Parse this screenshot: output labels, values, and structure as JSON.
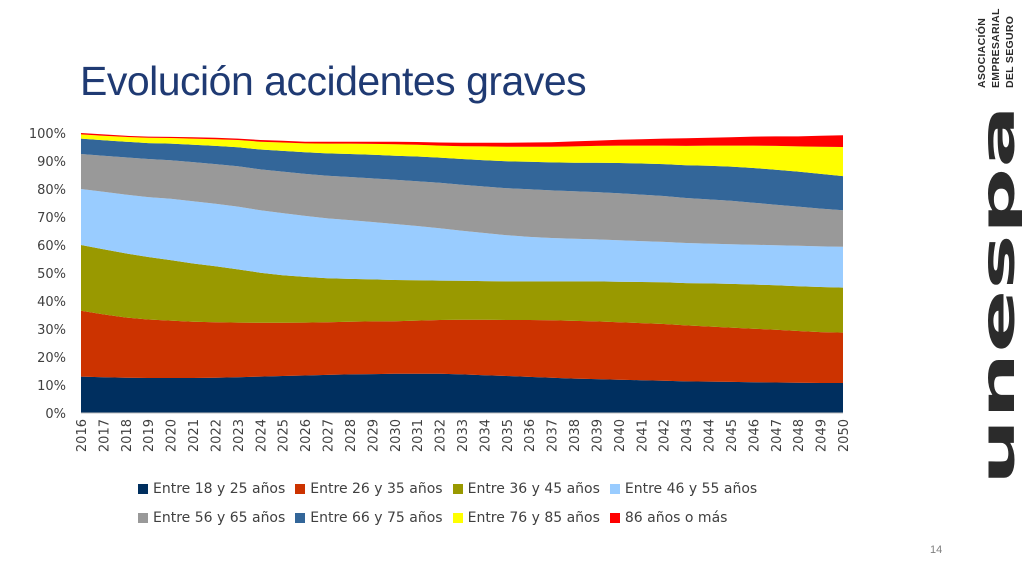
{
  "slide": {
    "title": "Evolución accidentes graves",
    "page_number": "14"
  },
  "logo": {
    "wordmark": "unespa",
    "lines": [
      "ASOCIACIÓN",
      "EMPRESARIAL",
      "DEL SEGURO"
    ]
  },
  "chart_data": {
    "type": "area",
    "stacked": true,
    "percent": true,
    "title": "",
    "xlabel": "",
    "ylabel": "",
    "ylim": [
      0,
      100
    ],
    "y_ticks": [
      "0%",
      "10%",
      "20%",
      "30%",
      "40%",
      "50%",
      "60%",
      "70%",
      "80%",
      "90%",
      "100%"
    ],
    "legend_position": "bottom",
    "grid": false,
    "categories": [
      "2016",
      "2017",
      "2018",
      "2019",
      "2020",
      "2021",
      "2022",
      "2023",
      "2024",
      "2025",
      "2026",
      "2027",
      "2028",
      "2029",
      "2030",
      "2031",
      "2032",
      "2033",
      "2034",
      "2035",
      "2036",
      "2037",
      "2038",
      "2039",
      "2040",
      "2041",
      "2042",
      "2043",
      "2044",
      "2045",
      "2046",
      "2047",
      "2048",
      "2049",
      "2050"
    ],
    "series": [
      {
        "name": "Entre 18 y 25 años",
        "color": "#002f5f",
        "values": [
          13.0,
          12.8,
          12.6,
          12.5,
          12.5,
          12.5,
          12.6,
          12.8,
          13.0,
          13.2,
          13.4,
          13.6,
          13.8,
          13.9,
          14.0,
          14.0,
          14.0,
          13.8,
          13.5,
          13.2,
          12.9,
          12.6,
          12.3,
          12.1,
          11.9,
          11.7,
          11.5,
          11.3,
          11.2,
          11.1,
          11.0,
          10.9,
          10.8,
          10.7,
          10.7
        ]
      },
      {
        "name": "Entre 26 y 35 años",
        "color": "#cc3300",
        "values": [
          23.5,
          22.4,
          21.5,
          20.9,
          20.5,
          20.1,
          19.8,
          19.5,
          19.2,
          19.0,
          18.9,
          18.8,
          18.8,
          18.8,
          18.8,
          19.0,
          19.2,
          19.5,
          19.8,
          20.0,
          20.3,
          20.5,
          20.6,
          20.6,
          20.5,
          20.4,
          20.3,
          20.0,
          19.7,
          19.4,
          19.1,
          18.8,
          18.5,
          18.2,
          18.0
        ]
      },
      {
        "name": "Entre 36 y 45 años",
        "color": "#999900",
        "values": [
          23.5,
          23.3,
          22.9,
          22.3,
          21.6,
          20.8,
          20.0,
          19.0,
          17.9,
          17.0,
          16.3,
          15.7,
          15.3,
          15.0,
          14.7,
          14.4,
          14.1,
          13.9,
          13.8,
          13.8,
          13.8,
          13.9,
          14.1,
          14.3,
          14.5,
          14.7,
          14.9,
          15.1,
          15.4,
          15.6,
          15.8,
          15.9,
          16.0,
          16.1,
          16.1
        ]
      },
      {
        "name": "Entre 46 y 55 años",
        "color": "#99ccff",
        "values": [
          20.0,
          20.5,
          21.0,
          21.4,
          21.9,
          22.2,
          22.3,
          22.4,
          22.3,
          22.2,
          21.8,
          21.4,
          21.0,
          20.5,
          20.0,
          19.4,
          18.7,
          17.9,
          17.2,
          16.5,
          15.9,
          15.5,
          15.2,
          15.0,
          14.8,
          14.6,
          14.4,
          14.3,
          14.2,
          14.2,
          14.2,
          14.3,
          14.4,
          14.5,
          14.6
        ]
      },
      {
        "name": "Entre 56 y 65 años",
        "color": "#999999",
        "values": [
          12.5,
          12.9,
          13.3,
          13.6,
          13.8,
          14.0,
          14.2,
          14.4,
          14.6,
          14.8,
          15.0,
          15.2,
          15.4,
          15.6,
          15.8,
          16.0,
          16.2,
          16.4,
          16.6,
          16.8,
          17.0,
          17.0,
          17.0,
          16.9,
          16.8,
          16.6,
          16.4,
          16.1,
          15.8,
          15.5,
          15.0,
          14.5,
          14.0,
          13.5,
          13.0
        ]
      },
      {
        "name": "Entre 66 y 75 años",
        "color": "#336699",
        "values": [
          5.5,
          5.5,
          5.6,
          5.7,
          5.9,
          6.2,
          6.5,
          6.8,
          7.1,
          7.4,
          7.7,
          8.0,
          8.2,
          8.4,
          8.6,
          8.8,
          9.0,
          9.2,
          9.4,
          9.6,
          9.8,
          10.0,
          10.2,
          10.5,
          10.8,
          11.1,
          11.4,
          11.7,
          12.0,
          12.2,
          12.4,
          12.5,
          12.5,
          12.4,
          12.2
        ]
      },
      {
        "name": "Entre 76 y 85 años",
        "color": "#ffff00",
        "values": [
          1.5,
          1.6,
          1.7,
          1.9,
          2.0,
          2.2,
          2.4,
          2.6,
          2.8,
          3.0,
          3.2,
          3.5,
          3.7,
          3.9,
          4.1,
          4.2,
          4.3,
          4.6,
          4.9,
          5.2,
          5.4,
          5.6,
          5.8,
          6.0,
          6.2,
          6.4,
          6.6,
          6.9,
          7.2,
          7.5,
          8.0,
          8.5,
          9.0,
          9.7,
          10.4
        ]
      },
      {
        "name": "86 años o más",
        "color": "#ff0000",
        "values": [
          0.5,
          0.5,
          0.4,
          0.4,
          0.4,
          0.5,
          0.5,
          0.5,
          0.6,
          0.6,
          0.6,
          0.7,
          0.7,
          0.8,
          0.9,
          1.0,
          1.1,
          1.2,
          1.3,
          1.4,
          1.5,
          1.6,
          1.8,
          1.9,
          2.1,
          2.3,
          2.5,
          2.7,
          2.8,
          3.0,
          3.2,
          3.4,
          3.6,
          3.9,
          4.2
        ]
      }
    ]
  }
}
